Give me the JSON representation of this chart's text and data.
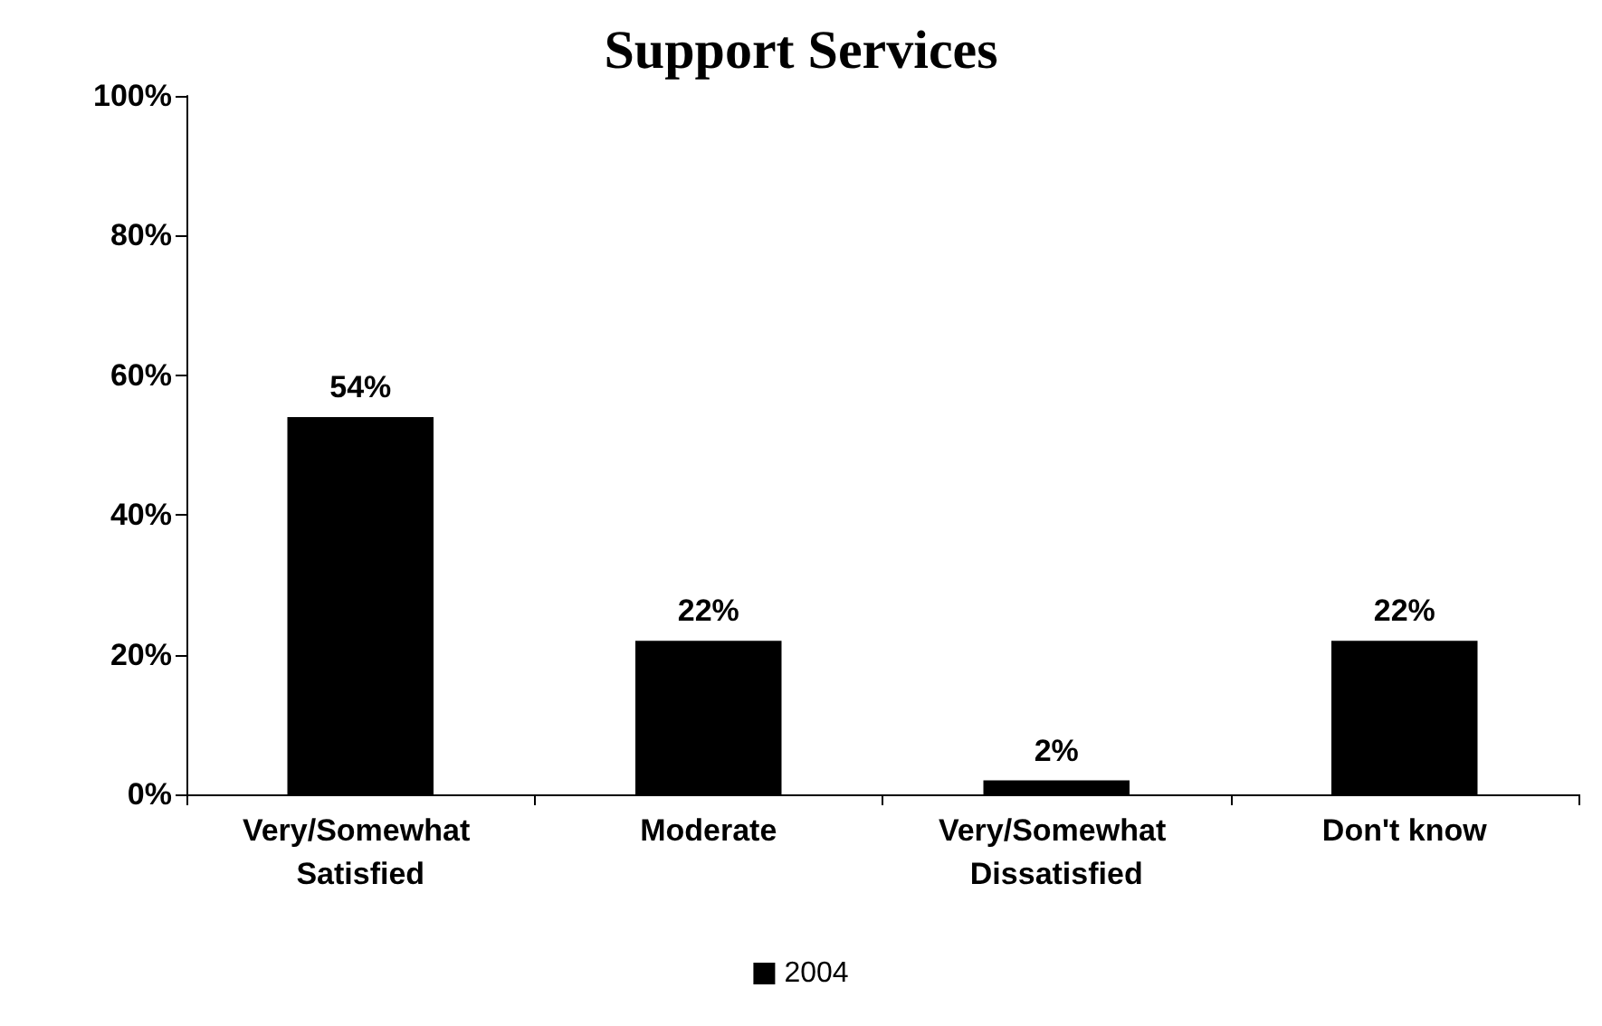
{
  "chart_data": {
    "type": "bar",
    "title": "Support Services",
    "categories": [
      "Very/Somewhat Satisfied",
      "Moderate",
      "Very/Somewhat Dissatisfied",
      "Don't know"
    ],
    "series": [
      {
        "name": "2004",
        "color": "#000000",
        "values": [
          54,
          22,
          2,
          22
        ],
        "value_labels": [
          "54%",
          "22%",
          "2%",
          "22%"
        ]
      }
    ],
    "ylim": [
      0,
      100
    ],
    "yticks": [
      {
        "value": 0,
        "label": "0%"
      },
      {
        "value": 20,
        "label": "20%"
      },
      {
        "value": 40,
        "label": "40%"
      },
      {
        "value": 60,
        "label": "60%"
      },
      {
        "value": 80,
        "label": "80%"
      },
      {
        "value": 100,
        "label": "100%"
      }
    ],
    "grid": false,
    "legend": "bottom"
  }
}
